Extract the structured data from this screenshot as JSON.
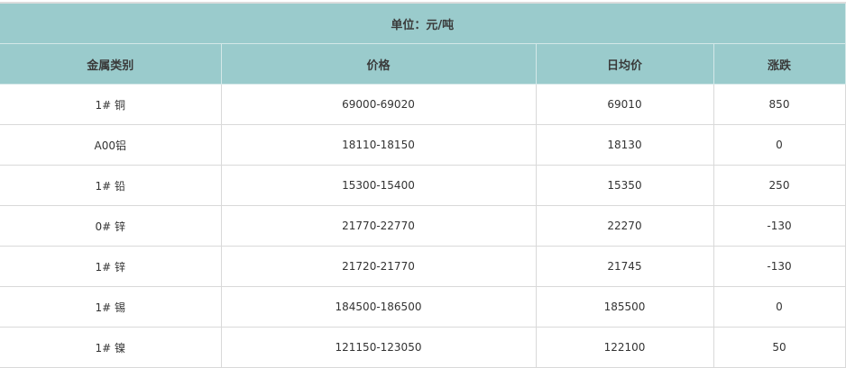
{
  "unit_caption": "单位：元/吨",
  "columns": [
    "金属类别",
    "价格",
    "日均价",
    "涨跌"
  ],
  "rows": [
    [
      "1# 铜",
      "69000-69020",
      "69010",
      "850"
    ],
    [
      "A00铝",
      "18110-18150",
      "18130",
      "0"
    ],
    [
      "1# 铅",
      "15300-15400",
      "15350",
      "250"
    ],
    [
      "0# 锌",
      "21770-22770",
      "22270",
      "-130"
    ],
    [
      "1# 锌",
      "21720-21770",
      "21745",
      "-130"
    ],
    [
      "1# 锡",
      "184500-186500",
      "185500",
      "0"
    ],
    [
      "1# 镍",
      "121150-123050",
      "122100",
      "50"
    ]
  ],
  "colors": {
    "header_bg": "#9acbcc",
    "border": "#d9d9d9"
  }
}
